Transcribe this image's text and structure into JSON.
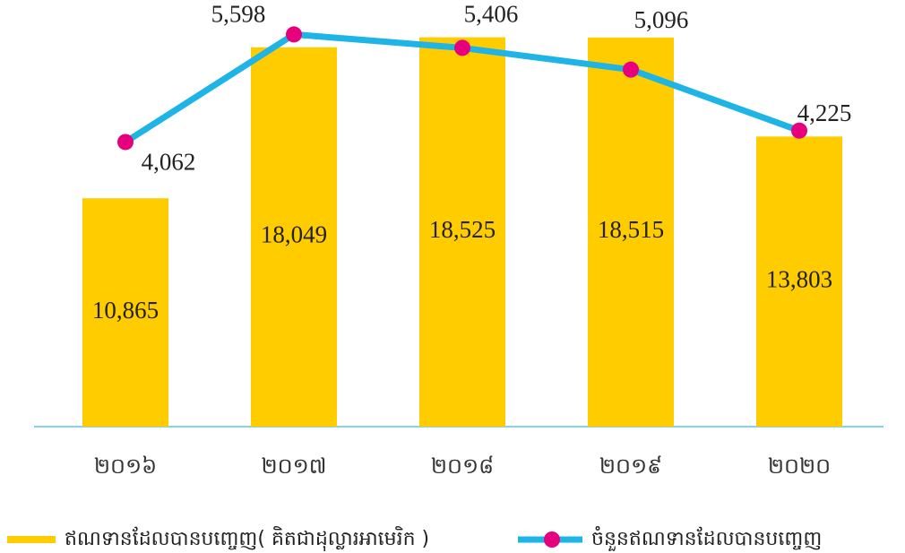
{
  "chart_data": {
    "type": "bar",
    "categories": [
      "២០១៦",
      "២០១៧",
      "២០១៨",
      "២០១៩",
      "២០២០"
    ],
    "series": [
      {
        "name": "ឥណទានដែលបានបញ្ចេញ( គិតជាដុល្លារអាមេរិក )",
        "type": "bar",
        "color": "#ffcc00",
        "values": [
          10865,
          18049,
          18525,
          18515,
          13803
        ],
        "value_labels": [
          "10,865",
          "18,049",
          "18,525",
          "18,515",
          "13,803"
        ]
      },
      {
        "name": "ចំនួនឥណទានដែលបានបញ្ចេញ",
        "type": "line",
        "axis": "y2",
        "color": "#1eb4e6",
        "marker_color": "#e6007e",
        "values": [
          4062,
          5598,
          5406,
          5096,
          4225
        ],
        "value_labels": [
          "4,062",
          "5,598",
          "5,406",
          "5,096",
          "4,225"
        ]
      }
    ],
    "ylim": [
      0,
      20000
    ],
    "y2lim": [
      0,
      6000
    ],
    "legend": "bottom"
  }
}
